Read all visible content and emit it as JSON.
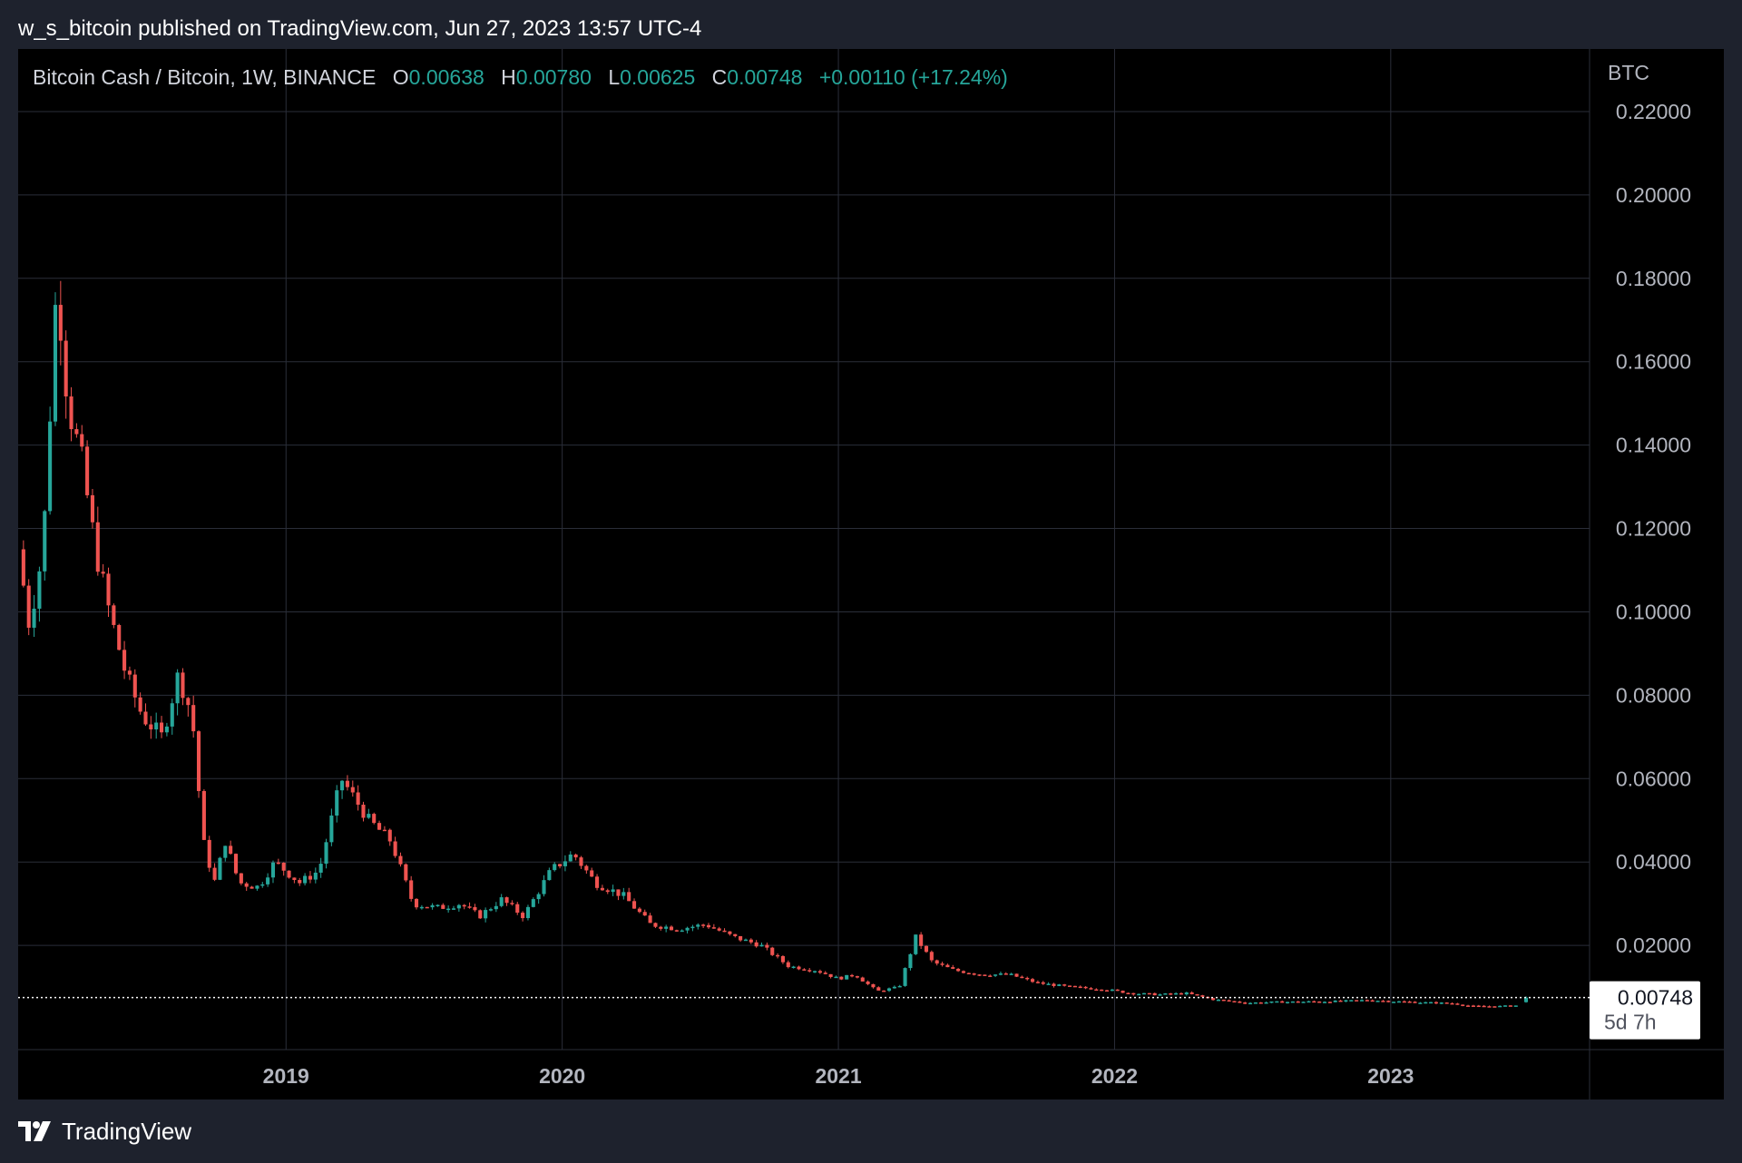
{
  "header": {
    "text": "w_s_bitcoin published on TradingView.com, Jun 27, 2023 13:57 UTC-4"
  },
  "legend": {
    "symbol": "Bitcoin Cash / Bitcoin, 1W, BINANCE",
    "open_label": "O",
    "open": "0.00638",
    "high_label": "H",
    "high": "0.00780",
    "low_label": "L",
    "low": "0.00625",
    "close_label": "C",
    "close": "0.00748",
    "change": "+0.00110 (+17.24%)"
  },
  "price_axis": {
    "currency": "BTC"
  },
  "last_price": {
    "value": "0.00748",
    "countdown": "5d 7h"
  },
  "footer": {
    "brand": "TradingView"
  },
  "colors": {
    "up": "#26a69a",
    "down": "#ef5350",
    "background": "#000000",
    "frame": "#1e222d",
    "grid": "#2a2e39",
    "axis_text": "#b2b5be"
  },
  "chart_data": {
    "type": "candlestick",
    "title": "Bitcoin Cash / Bitcoin, 1W, BINANCE",
    "y_unit": "BTC",
    "ylim": [
      -0.005,
      0.235
    ],
    "xlim": [
      2018.03,
      2023.72
    ],
    "y_ticks": [
      "0.22000",
      "0.20000",
      "0.18000",
      "0.16000",
      "0.14000",
      "0.12000",
      "0.10000",
      "0.08000",
      "0.06000",
      "0.04000",
      "0.02000"
    ],
    "x_ticks": [
      {
        "label": "2019",
        "x": 2019.0
      },
      {
        "label": "2020",
        "x": 2020.0
      },
      {
        "label": "2021",
        "x": 2021.0
      },
      {
        "label": "2022",
        "x": 2022.0
      },
      {
        "label": "2023",
        "x": 2023.0
      }
    ],
    "grid": true,
    "price_path": [
      [
        2018.03,
        0.115
      ],
      [
        2018.07,
        0.097
      ],
      [
        2018.12,
        0.115
      ],
      [
        2018.17,
        0.18
      ],
      [
        2018.21,
        0.15
      ],
      [
        2018.26,
        0.136
      ],
      [
        2018.31,
        0.115
      ],
      [
        2018.36,
        0.1
      ],
      [
        2018.42,
        0.085
      ],
      [
        2018.48,
        0.075
      ],
      [
        2018.55,
        0.07
      ],
      [
        2018.61,
        0.085
      ],
      [
        2018.66,
        0.075
      ],
      [
        2018.7,
        0.045
      ],
      [
        2018.74,
        0.035
      ],
      [
        2018.78,
        0.045
      ],
      [
        2018.83,
        0.035
      ],
      [
        2018.9,
        0.034
      ],
      [
        2018.96,
        0.04
      ],
      [
        2019.05,
        0.035
      ],
      [
        2019.12,
        0.038
      ],
      [
        2019.2,
        0.06
      ],
      [
        2019.3,
        0.05
      ],
      [
        2019.38,
        0.045
      ],
      [
        2019.46,
        0.03
      ],
      [
        2019.55,
        0.029
      ],
      [
        2019.63,
        0.03
      ],
      [
        2019.7,
        0.027
      ],
      [
        2019.78,
        0.031
      ],
      [
        2019.86,
        0.027
      ],
      [
        2019.96,
        0.038
      ],
      [
        2020.04,
        0.042
      ],
      [
        2020.12,
        0.035
      ],
      [
        2020.22,
        0.032
      ],
      [
        2020.32,
        0.025
      ],
      [
        2020.42,
        0.024
      ],
      [
        2020.52,
        0.025
      ],
      [
        2020.62,
        0.022
      ],
      [
        2020.72,
        0.02
      ],
      [
        2020.82,
        0.015
      ],
      [
        2020.92,
        0.014
      ],
      [
        2021.0,
        0.012
      ],
      [
        2021.06,
        0.013
      ],
      [
        2021.14,
        0.009
      ],
      [
        2021.22,
        0.01
      ],
      [
        2021.28,
        0.022
      ],
      [
        2021.34,
        0.016
      ],
      [
        2021.42,
        0.014
      ],
      [
        2021.52,
        0.013
      ],
      [
        2021.62,
        0.013
      ],
      [
        2021.72,
        0.011
      ],
      [
        2021.84,
        0.01
      ],
      [
        2021.96,
        0.0095
      ],
      [
        2022.06,
        0.0085
      ],
      [
        2022.16,
        0.0082
      ],
      [
        2022.26,
        0.0085
      ],
      [
        2022.36,
        0.007
      ],
      [
        2022.48,
        0.0062
      ],
      [
        2022.58,
        0.0064
      ],
      [
        2022.7,
        0.0065
      ],
      [
        2022.82,
        0.0066
      ],
      [
        2022.92,
        0.0069
      ],
      [
        2023.0,
        0.0066
      ],
      [
        2023.12,
        0.0063
      ],
      [
        2023.22,
        0.0061
      ],
      [
        2023.3,
        0.0054
      ],
      [
        2023.4,
        0.0054
      ],
      [
        2023.46,
        0.0056
      ],
      [
        2023.48,
        0.0064
      ],
      [
        2023.49,
        0.0075
      ]
    ],
    "last_candle": {
      "open": 0.00638,
      "high": 0.0078,
      "low": 0.00625,
      "close": 0.00748
    }
  }
}
